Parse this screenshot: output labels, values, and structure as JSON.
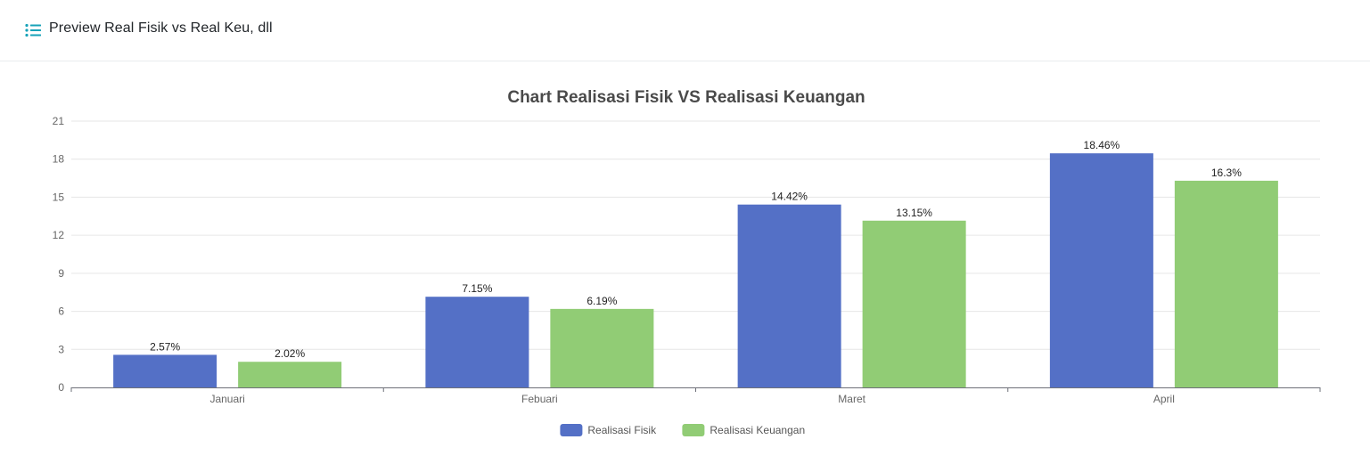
{
  "header": {
    "title": "Preview Real Fisik vs Real Keu, dll",
    "icon": "list-icon",
    "icon_color": "#17a2b8"
  },
  "chart_data": {
    "type": "bar",
    "title": "Chart Realisasi Fisik VS Realisasi Keuangan",
    "categories": [
      "Januari",
      "Febuari",
      "Maret",
      "April"
    ],
    "series": [
      {
        "name": "Realisasi Fisik",
        "values": [
          2.57,
          7.15,
          14.42,
          18.46
        ],
        "labels": [
          "2.57%",
          "7.15%",
          "14.42%",
          "18.46%"
        ],
        "color": "#5470c6"
      },
      {
        "name": "Realisasi Keuangan",
        "values": [
          2.02,
          6.19,
          13.15,
          16.3
        ],
        "labels": [
          "2.02%",
          "6.19%",
          "13.15%",
          "16.3%"
        ],
        "color": "#91cc75"
      }
    ],
    "ylim": [
      0,
      21
    ],
    "yticks": [
      0,
      3,
      6,
      9,
      12,
      15,
      18,
      21
    ],
    "xlabel": "",
    "ylabel": "",
    "grid": true,
    "legend": "bottom-center"
  }
}
